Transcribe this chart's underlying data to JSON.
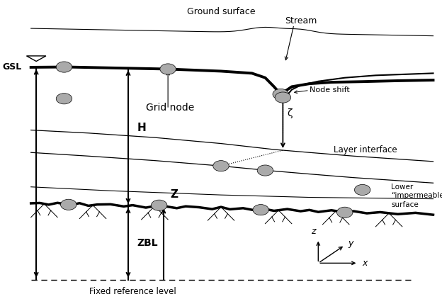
{
  "bg_color": "#ffffff",
  "line_color": "#000000",
  "gray_node": "#aaaaaa",
  "labels": {
    "ground_surface": "Ground surface",
    "stream": "Stream",
    "grid_node": "Grid node",
    "node_shift": "Node shift",
    "layer_interface": "Layer interface",
    "lower_impermeable": "Lower\n“impermeable\nsurface",
    "gsl": "GSL",
    "H": "H",
    "zeta": "ζ",
    "Z": "Z",
    "ZBL": "ZBL",
    "fixed_ref": "Fixed reference level",
    "z_axis": "z",
    "y_axis": "y",
    "x_axis": "x"
  }
}
